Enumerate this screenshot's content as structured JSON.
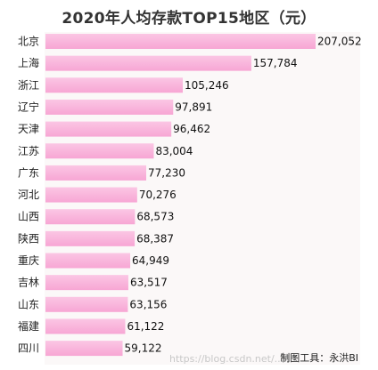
{
  "chart_data": {
    "type": "bar",
    "orientation": "horizontal",
    "title": "2020年人均存款TOP15地区（元）",
    "categories": [
      "北京",
      "上海",
      "浙江",
      "辽宁",
      "天津",
      "江苏",
      "广东",
      "河北",
      "山西",
      "陕西",
      "重庆",
      "吉林",
      "山东",
      "福建",
      "四川"
    ],
    "values": [
      207052,
      157784,
      105246,
      97891,
      96462,
      83004,
      77230,
      70276,
      68573,
      68387,
      64949,
      63517,
      63156,
      61122,
      59122
    ],
    "value_labels": [
      "207,052",
      "157,784",
      "105,246",
      "97,891",
      "96,462",
      "83,004",
      "77,230",
      "70,276",
      "68,573",
      "68,387",
      "64,949",
      "63,517",
      "63,156",
      "61,122",
      "59,122"
    ],
    "xlim": [
      0,
      207052
    ],
    "bar_color": "#f7a6d4",
    "bar_gradient_top": "#fbc6e4",
    "grid": false,
    "legend": "none"
  },
  "footer": {
    "credit": "制图工具：永洪BI",
    "watermark": "https://blog.csdn.net/...43"
  }
}
